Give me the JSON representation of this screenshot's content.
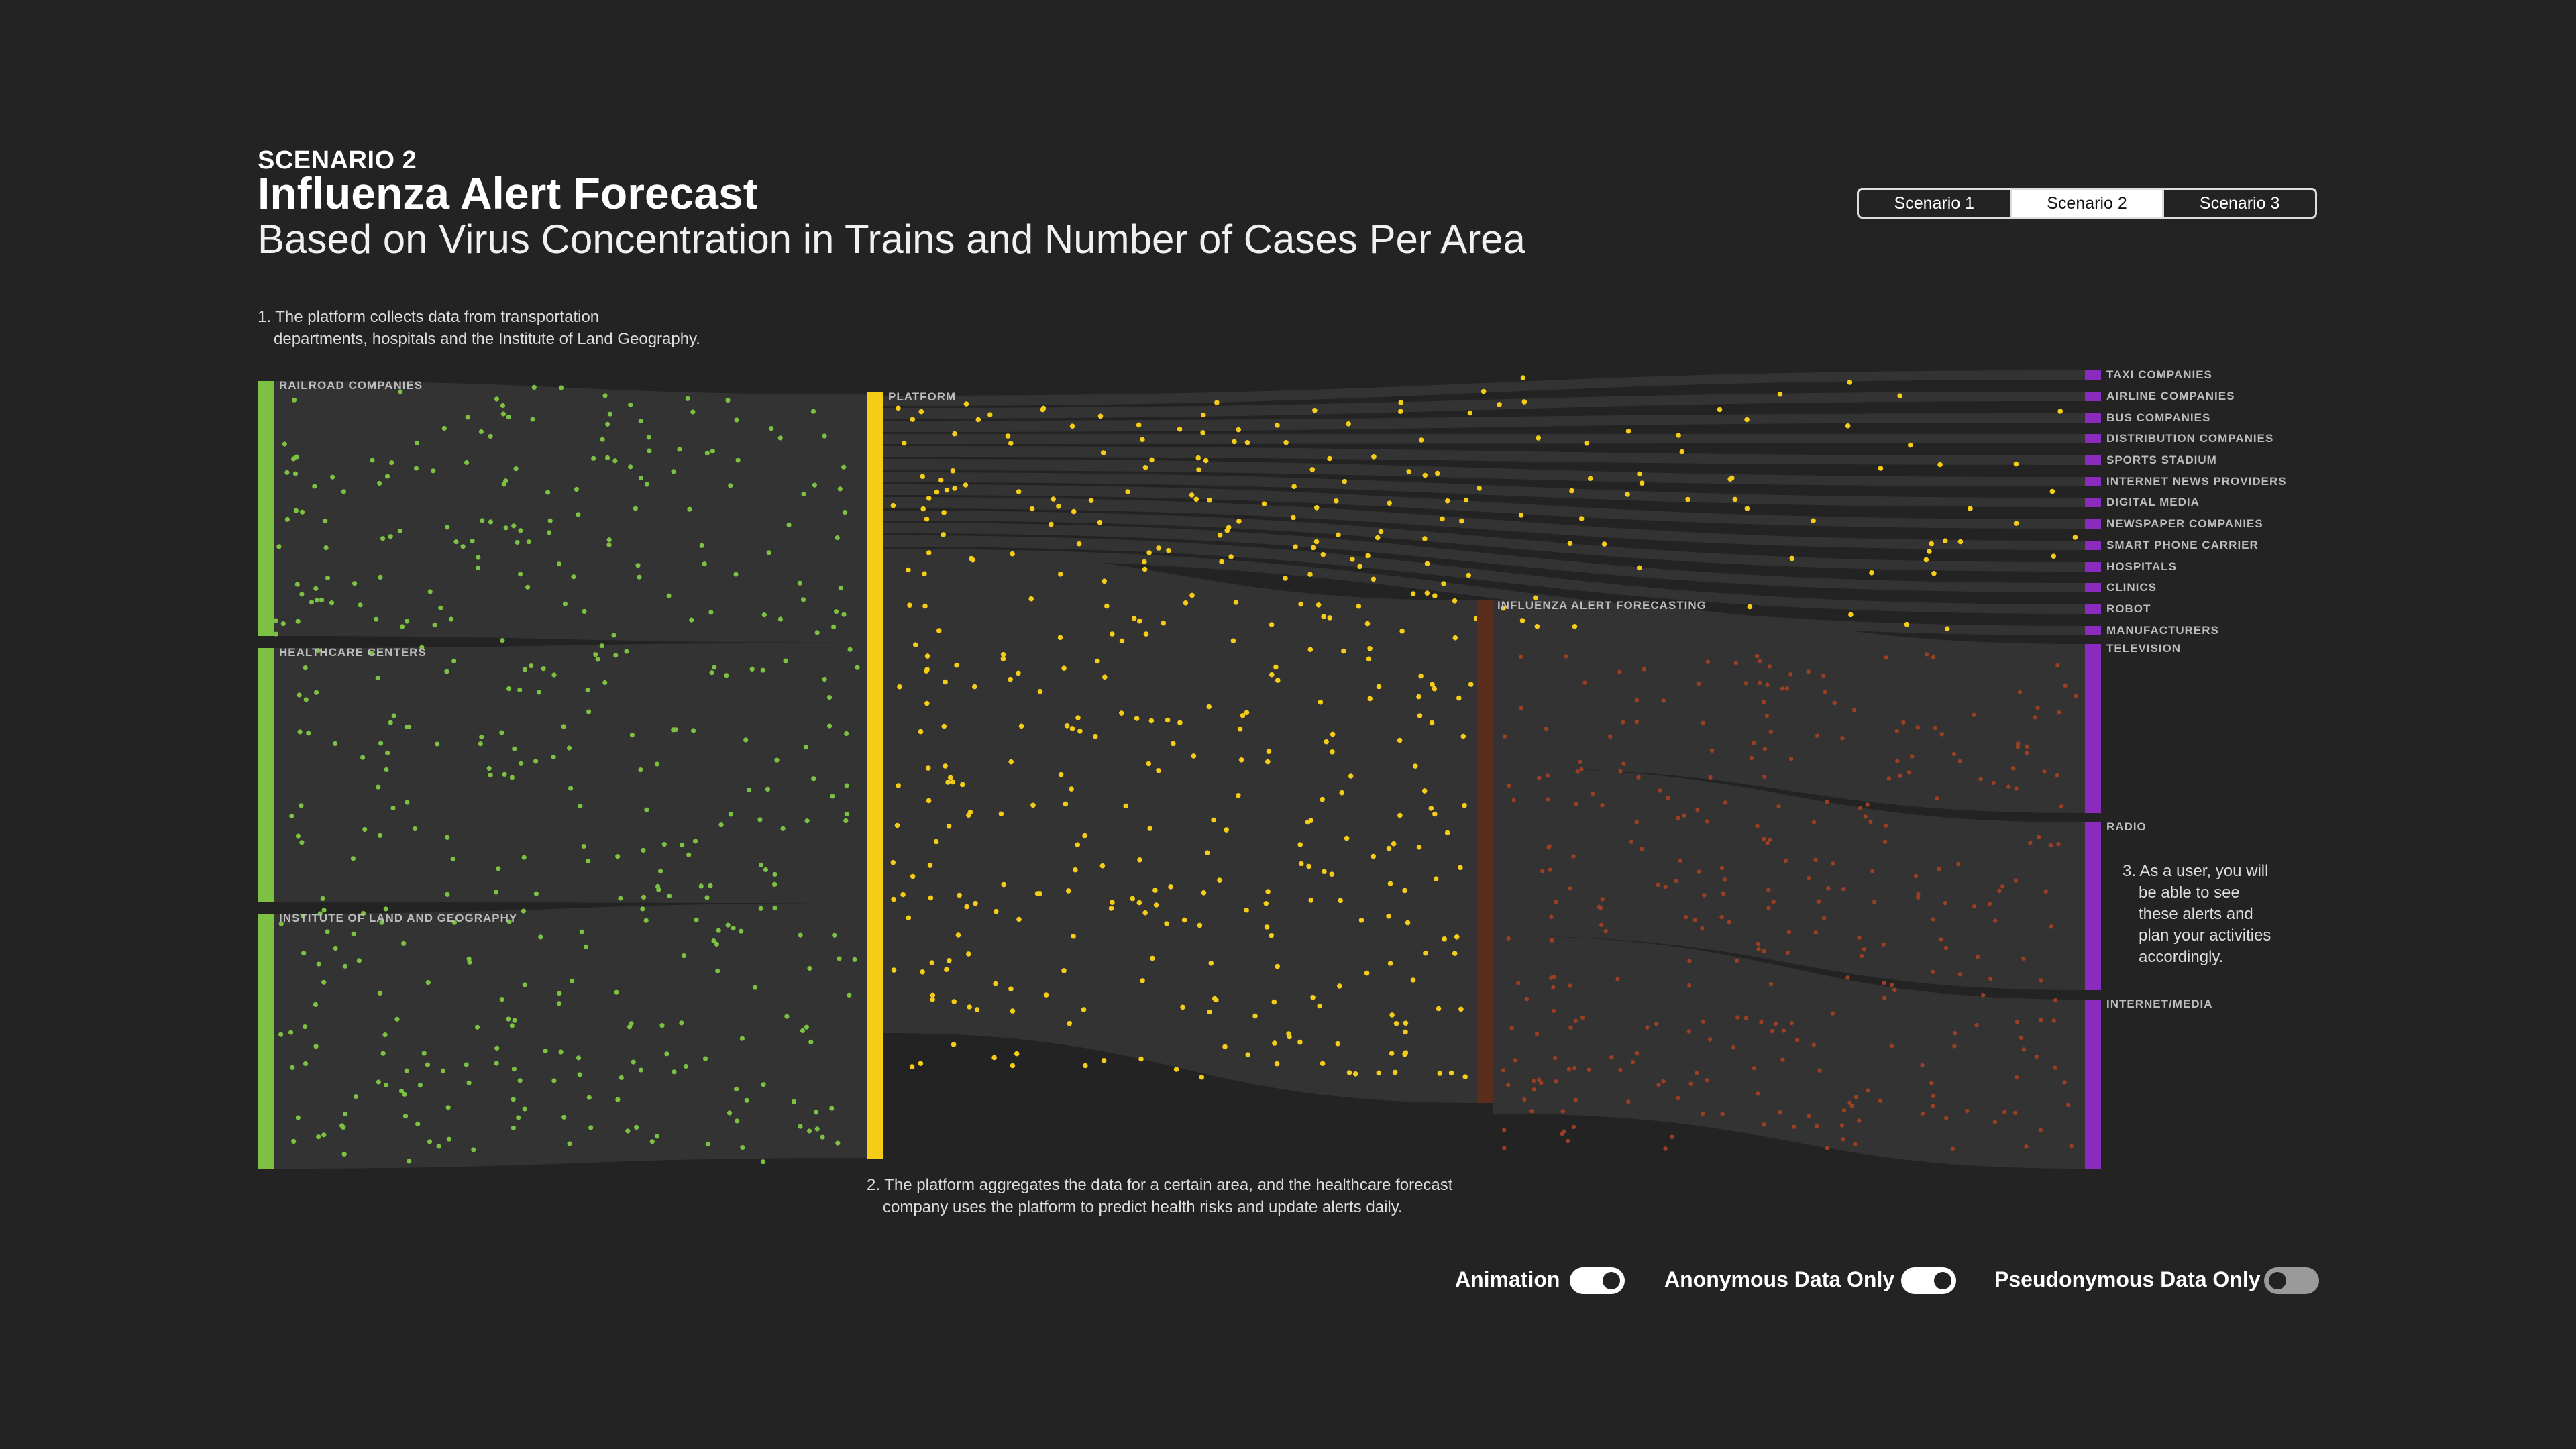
{
  "header": {
    "scenario_label": "SCENARIO 2",
    "title": "Influenza Alert Forecast",
    "subtitle": "Based on Virus Concentration in Trains and Number of Cases Per Area"
  },
  "tabs": [
    {
      "label": "Scenario 1",
      "active": false
    },
    {
      "label": "Scenario 2",
      "active": true
    },
    {
      "label": "Scenario 3",
      "active": false
    }
  ],
  "notes": {
    "step1_line1": "1. The platform collects data from transportation",
    "step1_line2": "departments, hospitals and the Institute of Land Geography.",
    "step2_line1": "2. The platform aggregates the data for a certain area, and the healthcare forecast",
    "step2_line2": "company uses the platform to predict health risks and update alerts daily.",
    "step3_lines": [
      "3. As a user, you will",
      "be able to see",
      "these alerts and",
      "plan your activities",
      "accordingly."
    ]
  },
  "colors": {
    "sources": "#7cc142",
    "platform": "#f5cc17",
    "forecasting": "#5a2d1d",
    "forecasting_dots": "#9a3f22",
    "outputs": "#8a2bbd",
    "flow": "#333333",
    "background": "#232323"
  },
  "diagram": {
    "sources": [
      "RAILROAD COMPANIES",
      "HEALTHCARE CENTERS",
      "INSTITUTE OF LAND AND GEOGRAPHY"
    ],
    "platform": "PLATFORM",
    "forecasting": "INFLUENZA ALERT FORECASTING",
    "small_outputs": [
      "TAXI COMPANIES",
      "AIRLINE COMPANIES",
      "BUS COMPANIES",
      "DISTRIBUTION COMPANIES",
      "SPORTS STADIUM",
      "INTERNET NEWS PROVIDERS",
      "DIGITAL MEDIA",
      "NEWSPAPER COMPANIES",
      "SMART PHONE CARRIER",
      "HOSPITALS",
      "CLINICS",
      "ROBOT",
      "MANUFACTURERS"
    ],
    "large_outputs": [
      "TELEVISION",
      "RADIO",
      "INTERNET/MEDIA"
    ]
  },
  "toggles": [
    {
      "label": "Animation",
      "on": true
    },
    {
      "label": "Anonymous Data Only",
      "on": true
    },
    {
      "label": "Pseudonymous Data Only",
      "on": false
    }
  ]
}
